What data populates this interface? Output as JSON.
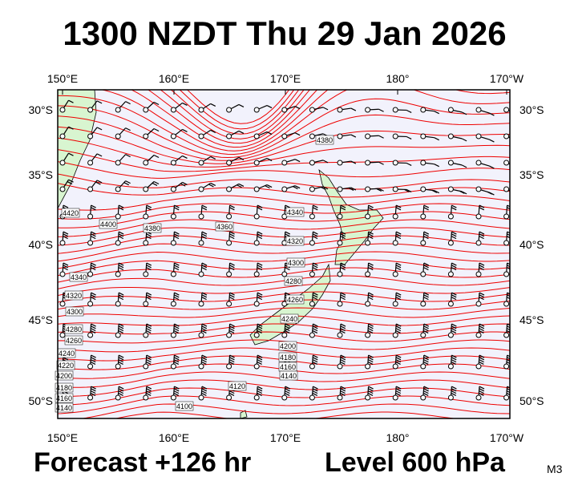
{
  "header": {
    "title": "1300 NZDT Thu 29 Jan 2026"
  },
  "axes": {
    "lon_labels": [
      "150°E",
      "160°E",
      "170°E",
      "180°",
      "170°W"
    ],
    "lat_labels": [
      "30°S",
      "35°S",
      "40°S",
      "45°S",
      "50°S"
    ]
  },
  "contour_labels": [
    "4380",
    "4420",
    "4400",
    "4380",
    "4360",
    "4340",
    "4320",
    "4300",
    "4280",
    "4260",
    "4240",
    "4200",
    "4180",
    "4160",
    "4140",
    "4120",
    "4100",
    "4340",
    "4320",
    "4300",
    "4280",
    "4260",
    "4240",
    "4220",
    "4200",
    "4180",
    "4160",
    "4140"
  ],
  "footer": {
    "forecast": "Forecast +126 hr",
    "level": "Level 600 hPa",
    "model": "M3"
  }
}
